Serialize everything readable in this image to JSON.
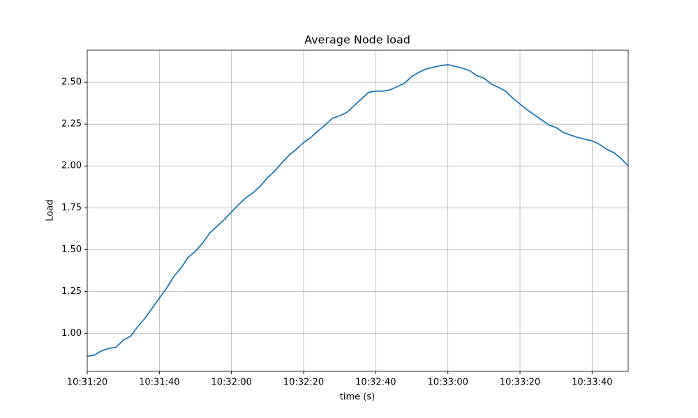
{
  "chart_data": {
    "type": "line",
    "title": "Average Node load",
    "xlabel": "time (s)",
    "ylabel": "Load",
    "x": [
      "10:31:20",
      "10:31:22",
      "10:31:24",
      "10:31:26",
      "10:31:28",
      "10:31:30",
      "10:31:32",
      "10:31:34",
      "10:31:36",
      "10:31:38",
      "10:31:40",
      "10:31:42",
      "10:31:44",
      "10:31:46",
      "10:31:48",
      "10:31:50",
      "10:31:52",
      "10:31:54",
      "10:31:56",
      "10:31:58",
      "10:32:00",
      "10:32:02",
      "10:32:04",
      "10:32:06",
      "10:32:08",
      "10:32:10",
      "10:32:12",
      "10:32:14",
      "10:32:16",
      "10:32:18",
      "10:32:20",
      "10:32:22",
      "10:32:24",
      "10:32:26",
      "10:32:28",
      "10:32:30",
      "10:32:32",
      "10:32:34",
      "10:32:36",
      "10:32:38",
      "10:32:40",
      "10:32:42",
      "10:32:44",
      "10:32:46",
      "10:32:48",
      "10:32:50",
      "10:32:52",
      "10:32:54",
      "10:32:56",
      "10:32:58",
      "10:33:00",
      "10:33:02",
      "10:33:04",
      "10:33:06",
      "10:33:08",
      "10:33:10",
      "10:33:12",
      "10:33:14",
      "10:33:16",
      "10:33:18",
      "10:33:20",
      "10:33:22",
      "10:33:24",
      "10:33:26",
      "10:33:28",
      "10:33:30",
      "10:33:32",
      "10:33:34",
      "10:33:36",
      "10:33:38",
      "10:33:40",
      "10:33:42",
      "10:33:44",
      "10:33:46",
      "10:33:48",
      "10:33:50"
    ],
    "series": [
      {
        "name": "Load",
        "color": "#1f77b4",
        "values": [
          0.863,
          0.87,
          0.896,
          0.91,
          0.917,
          0.96,
          0.983,
          1.04,
          1.09,
          1.15,
          1.21,
          1.27,
          1.34,
          1.39,
          1.455,
          1.49,
          1.54,
          1.6,
          1.64,
          1.68,
          1.725,
          1.77,
          1.81,
          1.84,
          1.88,
          1.93,
          1.97,
          2.02,
          2.065,
          2.1,
          2.14,
          2.17,
          2.21,
          2.245,
          2.285,
          2.3,
          2.32,
          2.36,
          2.4,
          2.44,
          2.447,
          2.447,
          2.455,
          2.475,
          2.495,
          2.535,
          2.56,
          2.58,
          2.59,
          2.6,
          2.605,
          2.595,
          2.585,
          2.57,
          2.54,
          2.525,
          2.49,
          2.47,
          2.447,
          2.405,
          2.37,
          2.335,
          2.305,
          2.275,
          2.245,
          2.23,
          2.2,
          2.185,
          2.17,
          2.16,
          2.15,
          2.13,
          2.1,
          2.08,
          2.045,
          2.0
        ]
      }
    ],
    "xlim": [
      "10:31:20",
      "10:33:50"
    ],
    "xticks": [
      "10:31:20",
      "10:31:40",
      "10:32:00",
      "10:32:20",
      "10:32:40",
      "10:33:00",
      "10:33:20",
      "10:33:40"
    ],
    "ylim": [
      0.773,
      2.692
    ],
    "yticks": [
      {
        "value": 1,
        "label": "1.00"
      },
      1.25,
      {
        "value": 1.5,
        "label": "1.50"
      },
      1.75,
      {
        "value": 2,
        "label": "2.00"
      },
      2.25,
      {
        "value": 2.5,
        "label": "2.50"
      }
    ],
    "grid": true
  }
}
